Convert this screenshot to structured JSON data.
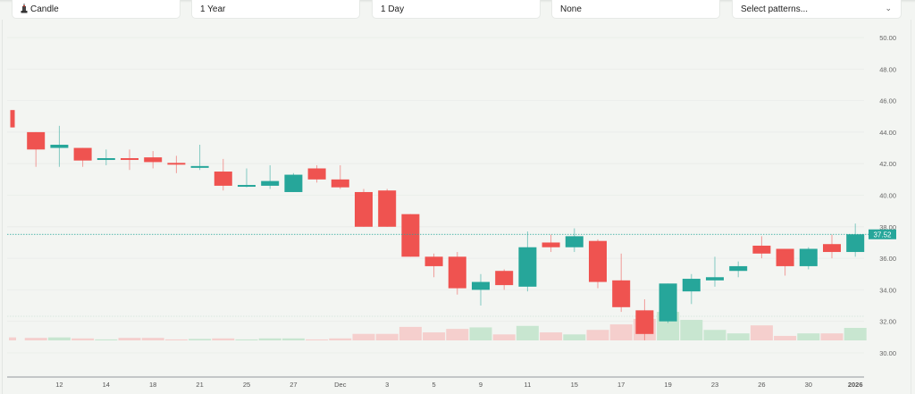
{
  "toolbar": {
    "chart_type": {
      "label": "Candle",
      "icon": "candle-icon"
    },
    "range": {
      "label": "1 Year"
    },
    "interval": {
      "label": "1 Day"
    },
    "indicator": {
      "label": "None"
    },
    "patterns": {
      "placeholder": "Select patterns...",
      "icon": "chevron-down-icon"
    }
  },
  "colors": {
    "up": "#26a69a",
    "down": "#ef5350",
    "up_volume": "#c8e6d0",
    "down_volume": "#f5cfcd",
    "price_line": "#26a69a",
    "background": "#f3f5f2"
  },
  "price_label": "37.52",
  "chart_data": {
    "type": "candlestick",
    "title": "",
    "xlabel": "",
    "ylabel": "",
    "ylim": [
      30,
      50
    ],
    "y_ticks": [
      "50.00",
      "48.00",
      "46.00",
      "44.00",
      "42.00",
      "40.00",
      "38.00",
      "36.00",
      "34.00",
      "32.00",
      "30.00"
    ],
    "x_tick_labels": [
      "12",
      "14",
      "18",
      "21",
      "25",
      "27",
      "Dec",
      "3",
      "5",
      "9",
      "11",
      "15",
      "17",
      "19",
      "23",
      "26",
      "30",
      "2026"
    ],
    "grid": true,
    "last_price": 37.52,
    "candles": [
      {
        "o": 45.4,
        "h": 45.4,
        "l": 44.3,
        "c": 44.3,
        "v": 0.6
      },
      {
        "o": 44.0,
        "h": 44.0,
        "l": 41.8,
        "c": 42.9,
        "v": 0.5
      },
      {
        "o": 43.0,
        "h": 44.4,
        "l": 41.8,
        "c": 43.2,
        "v": 0.6
      },
      {
        "o": 43.0,
        "h": 43.0,
        "l": 41.8,
        "c": 42.2,
        "v": 0.4
      },
      {
        "o": 42.25,
        "h": 42.9,
        "l": 41.9,
        "c": 42.35,
        "v": 0.2
      },
      {
        "o": 42.35,
        "h": 42.9,
        "l": 41.6,
        "c": 42.3,
        "v": 0.5
      },
      {
        "o": 42.4,
        "h": 42.8,
        "l": 41.7,
        "c": 42.1,
        "v": 0.5
      },
      {
        "o": 42.05,
        "h": 42.5,
        "l": 41.4,
        "c": 41.95,
        "v": 0.2
      },
      {
        "o": 41.75,
        "h": 43.2,
        "l": 41.6,
        "c": 41.85,
        "v": 0.3
      },
      {
        "o": 41.5,
        "h": 42.3,
        "l": 40.3,
        "c": 40.6,
        "v": 0.4
      },
      {
        "o": 40.55,
        "h": 41.7,
        "l": 40.5,
        "c": 40.65,
        "v": 0.2
      },
      {
        "o": 40.6,
        "h": 41.9,
        "l": 40.4,
        "c": 40.9,
        "v": 0.4
      },
      {
        "o": 40.2,
        "h": 41.4,
        "l": 40.2,
        "c": 41.3,
        "v": 0.4
      },
      {
        "o": 41.7,
        "h": 41.9,
        "l": 40.8,
        "c": 41.0,
        "v": 0.2
      },
      {
        "o": 41.0,
        "h": 41.9,
        "l": 40.4,
        "c": 40.5,
        "v": 0.4
      },
      {
        "o": 40.2,
        "h": 40.4,
        "l": 38.0,
        "c": 38.0,
        "v": 1.3
      },
      {
        "o": 40.3,
        "h": 40.4,
        "l": 38.0,
        "c": 38.0,
        "v": 1.3
      },
      {
        "o": 38.8,
        "h": 38.8,
        "l": 36.1,
        "c": 36.1,
        "v": 2.7
      },
      {
        "o": 36.1,
        "h": 36.3,
        "l": 34.8,
        "c": 35.5,
        "v": 1.6
      },
      {
        "o": 36.1,
        "h": 36.4,
        "l": 33.7,
        "c": 34.1,
        "v": 2.3
      },
      {
        "o": 34.0,
        "h": 35.0,
        "l": 33.0,
        "c": 34.5,
        "v": 2.6
      },
      {
        "o": 35.2,
        "h": 35.3,
        "l": 34.0,
        "c": 34.3,
        "v": 1.2
      },
      {
        "o": 34.2,
        "h": 37.7,
        "l": 33.9,
        "c": 36.7,
        "v": 2.9
      },
      {
        "o": 37.0,
        "h": 37.5,
        "l": 36.4,
        "c": 36.7,
        "v": 1.6
      },
      {
        "o": 36.7,
        "h": 37.9,
        "l": 36.4,
        "c": 37.4,
        "v": 1.2
      },
      {
        "o": 37.1,
        "h": 37.2,
        "l": 34.1,
        "c": 34.5,
        "v": 2.1
      },
      {
        "o": 34.6,
        "h": 36.3,
        "l": 32.6,
        "c": 32.9,
        "v": 3.2
      },
      {
        "o": 32.7,
        "h": 33.4,
        "l": 30.8,
        "c": 31.2,
        "v": 4.3
      },
      {
        "o": 32.0,
        "h": 34.4,
        "l": 31.9,
        "c": 34.4,
        "v": 5.7
      },
      {
        "o": 33.9,
        "h": 35.0,
        "l": 33.1,
        "c": 34.7,
        "v": 4.1
      },
      {
        "o": 34.6,
        "h": 36.1,
        "l": 34.2,
        "c": 34.8,
        "v": 2.1
      },
      {
        "o": 35.2,
        "h": 35.8,
        "l": 34.8,
        "c": 35.5,
        "v": 1.4
      },
      {
        "o": 36.8,
        "h": 37.4,
        "l": 36.0,
        "c": 36.3,
        "v": 3.0
      },
      {
        "o": 36.6,
        "h": 36.6,
        "l": 34.9,
        "c": 35.5,
        "v": 0.9
      },
      {
        "o": 35.5,
        "h": 36.7,
        "l": 35.3,
        "c": 36.6,
        "v": 1.4
      },
      {
        "o": 36.9,
        "h": 37.5,
        "l": 36.0,
        "c": 36.4,
        "v": 1.4
      },
      {
        "o": 36.4,
        "h": 38.2,
        "l": 36.1,
        "c": 37.52,
        "v": 2.5
      }
    ]
  }
}
